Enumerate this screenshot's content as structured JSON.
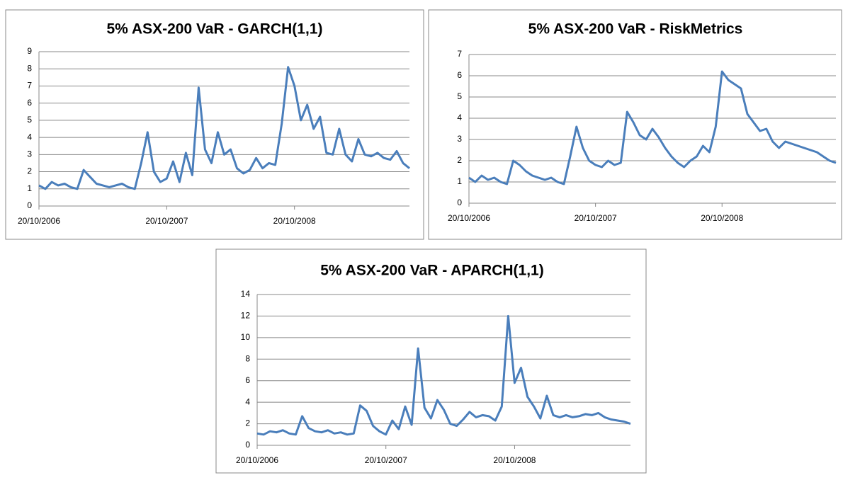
{
  "chart_data": [
    {
      "type": "line",
      "title": "5% ASX-200 VaR - GARCH(1,1)",
      "categories": [
        "20/10/2006",
        null,
        null,
        null,
        null,
        null,
        null,
        null,
        null,
        null,
        null,
        null,
        null,
        null,
        null,
        null,
        null,
        null,
        null,
        null,
        "20/10/2007",
        null,
        null,
        null,
        null,
        null,
        null,
        null,
        null,
        null,
        null,
        null,
        null,
        null,
        null,
        null,
        null,
        null,
        null,
        null,
        "20/10/2008",
        null,
        null,
        null,
        null,
        null,
        null,
        null,
        null,
        null,
        null,
        null,
        null,
        null,
        null,
        null,
        null,
        null,
        null
      ],
      "series": [
        {
          "color": "#4a7ebb",
          "values": [
            1.2,
            1.0,
            1.4,
            1.2,
            1.3,
            1.1,
            1.0,
            2.1,
            1.7,
            1.3,
            1.2,
            1.1,
            1.2,
            1.3,
            1.1,
            1.0,
            2.5,
            4.3,
            2.0,
            1.4,
            1.6,
            2.6,
            1.4,
            3.1,
            1.8,
            6.9,
            3.3,
            2.5,
            4.3,
            3.0,
            3.3,
            2.2,
            1.9,
            2.1,
            2.8,
            2.2,
            2.5,
            2.4,
            4.8,
            8.1,
            7.0,
            5.0,
            5.9,
            4.5,
            5.2,
            3.1,
            3.0,
            4.5,
            3.0,
            2.6,
            3.9,
            3.0,
            2.9,
            3.1,
            2.8,
            2.7,
            3.2,
            2.5,
            2.2
          ]
        }
      ],
      "ylim": [
        0,
        9
      ],
      "yticks": [
        0,
        1,
        2,
        3,
        4,
        5,
        6,
        7,
        8,
        9
      ],
      "grid": true
    },
    {
      "type": "line",
      "title": "5% ASX-200 VaR - RiskMetrics",
      "categories": [
        "20/10/2006",
        null,
        null,
        null,
        null,
        null,
        null,
        null,
        null,
        null,
        null,
        null,
        null,
        null,
        null,
        null,
        null,
        null,
        null,
        null,
        "20/10/2007",
        null,
        null,
        null,
        null,
        null,
        null,
        null,
        null,
        null,
        null,
        null,
        null,
        null,
        null,
        null,
        null,
        null,
        null,
        null,
        "20/10/2008",
        null,
        null,
        null,
        null,
        null,
        null,
        null,
        null,
        null,
        null,
        null,
        null,
        null,
        null,
        null,
        null,
        null,
        null
      ],
      "series": [
        {
          "color": "#4a7ebb",
          "values": [
            1.2,
            1.0,
            1.3,
            1.1,
            1.2,
            1.0,
            0.9,
            2.0,
            1.8,
            1.5,
            1.3,
            1.2,
            1.1,
            1.2,
            1.0,
            0.9,
            2.2,
            3.6,
            2.6,
            2.0,
            1.8,
            1.7,
            2.0,
            1.8,
            1.9,
            4.3,
            3.8,
            3.2,
            3.0,
            3.5,
            3.1,
            2.6,
            2.2,
            1.9,
            1.7,
            2.0,
            2.2,
            2.7,
            2.4,
            3.6,
            6.2,
            5.8,
            5.6,
            5.4,
            4.2,
            3.8,
            3.4,
            3.5,
            2.9,
            2.6,
            2.9,
            2.8,
            2.7,
            2.6,
            2.5,
            2.4,
            2.2,
            2.0,
            1.9
          ]
        }
      ],
      "ylim": [
        0,
        7
      ],
      "yticks": [
        0,
        1,
        2,
        3,
        4,
        5,
        6,
        7
      ],
      "grid": true
    },
    {
      "type": "line",
      "title": "5% ASX-200 VaR - APARCH(1,1)",
      "categories": [
        "20/10/2006",
        null,
        null,
        null,
        null,
        null,
        null,
        null,
        null,
        null,
        null,
        null,
        null,
        null,
        null,
        null,
        null,
        null,
        null,
        null,
        "20/10/2007",
        null,
        null,
        null,
        null,
        null,
        null,
        null,
        null,
        null,
        null,
        null,
        null,
        null,
        null,
        null,
        null,
        null,
        null,
        null,
        "20/10/2008",
        null,
        null,
        null,
        null,
        null,
        null,
        null,
        null,
        null,
        null,
        null,
        null,
        null,
        null,
        null,
        null,
        null,
        null
      ],
      "series": [
        {
          "color": "#4a7ebb",
          "values": [
            1.1,
            1.0,
            1.3,
            1.2,
            1.4,
            1.1,
            1.0,
            2.7,
            1.6,
            1.3,
            1.2,
            1.4,
            1.1,
            1.2,
            1.0,
            1.1,
            3.7,
            3.2,
            1.8,
            1.3,
            1.0,
            2.3,
            1.5,
            3.6,
            1.9,
            9.0,
            3.5,
            2.5,
            4.2,
            3.3,
            2.0,
            1.8,
            2.4,
            3.1,
            2.6,
            2.8,
            2.7,
            2.3,
            3.6,
            12.0,
            5.8,
            7.2,
            4.5,
            3.6,
            2.5,
            4.6,
            2.8,
            2.6,
            2.8,
            2.6,
            2.7,
            2.9,
            2.8,
            3.0,
            2.6,
            2.4,
            2.3,
            2.2,
            2.0
          ]
        }
      ],
      "ylim": [
        0,
        14
      ],
      "yticks": [
        0,
        2,
        4,
        6,
        8,
        10,
        12,
        14
      ],
      "grid": true
    }
  ]
}
